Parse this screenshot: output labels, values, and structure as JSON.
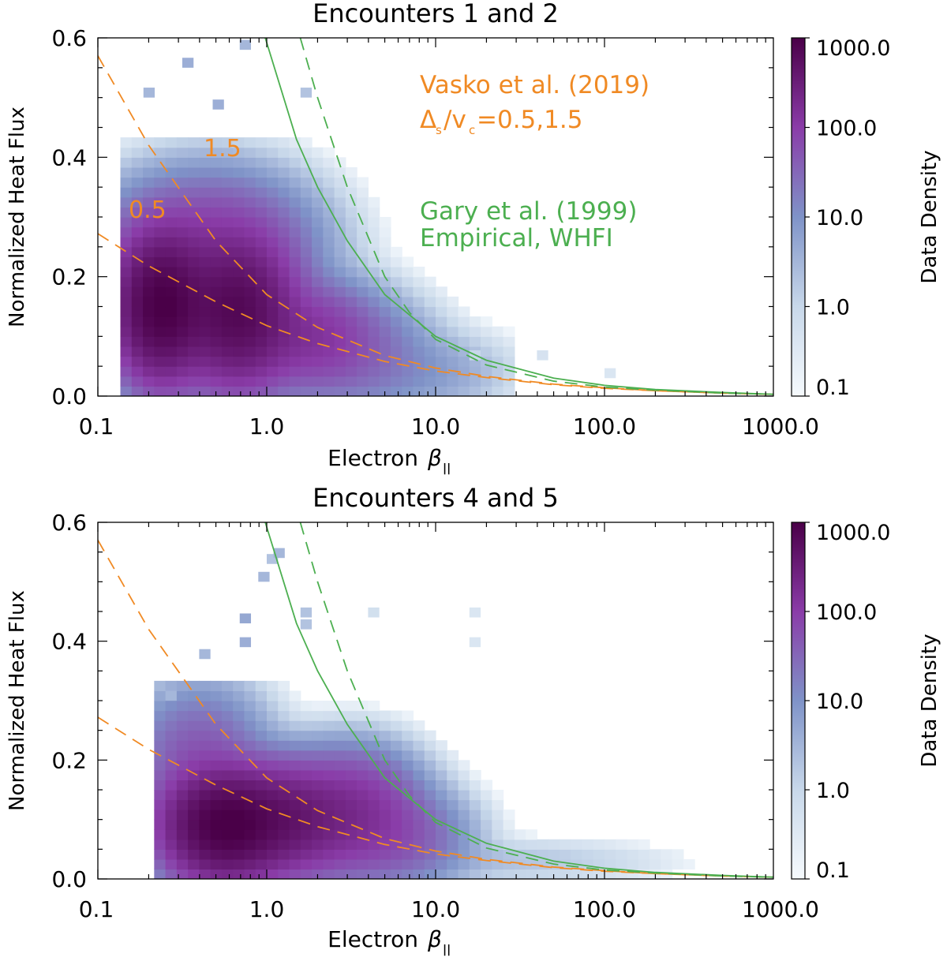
{
  "chart_data": [
    {
      "type": "heatmap",
      "title": "Encounters 1 and 2",
      "xlabel": "Electron",
      "xlabel_symbol": "β",
      "xlabel_sub": "||",
      "ylabel": "Normalized Heat Flux",
      "xscale": "log",
      "xlim": [
        0.1,
        1000
      ],
      "ylim": [
        0,
        0.6
      ],
      "xticks": [
        {
          "v": 0.1,
          "label": "0.1"
        },
        {
          "v": 1,
          "label": "1.0"
        },
        {
          "v": 10,
          "label": "10.0"
        },
        {
          "v": 100,
          "label": "100.0"
        },
        {
          "v": 1000,
          "label": "1000.0"
        }
      ],
      "yticks": [
        {
          "v": 0,
          "label": "0.0"
        },
        {
          "v": 0.2,
          "label": "0.2"
        },
        {
          "v": 0.4,
          "label": "0.4"
        },
        {
          "v": 0.6,
          "label": "0.6"
        }
      ],
      "colorbar": {
        "label": "Data Density",
        "scale": "log",
        "range": [
          0.1,
          1000
        ],
        "ticks": [
          {
            "v": 1000,
            "label": "1000.0"
          },
          {
            "v": 100,
            "label": "100.0"
          },
          {
            "v": 10,
            "label": "10.0"
          },
          {
            "v": 1,
            "label": "1.0"
          },
          {
            "v": 0.1,
            "label": "0.1"
          }
        ],
        "colors": [
          "#f6fafd",
          "#c8d8ea",
          "#7f93c8",
          "#8a3ca8",
          "#4a0048"
        ]
      },
      "density_blobs": [
        {
          "logx": -0.62,
          "y": 0.15,
          "sx": 0.14,
          "sy": 0.06,
          "amp": 3.0
        },
        {
          "logx": -0.18,
          "y": 0.14,
          "sx": 0.17,
          "sy": 0.06,
          "amp": 2.85
        },
        {
          "logx": -0.35,
          "y": 0.25,
          "sx": 0.3,
          "sy": 0.06,
          "amp": 2.0
        },
        {
          "logx": 0.25,
          "y": 0.1,
          "sx": 0.2,
          "sy": 0.045,
          "amp": 2.1
        },
        {
          "logx": 0.55,
          "y": 0.07,
          "sx": 0.22,
          "sy": 0.05,
          "amp": 1.4
        },
        {
          "logx": 0.95,
          "y": 0.04,
          "sx": 0.25,
          "sy": 0.035,
          "amp": 0.8
        }
      ],
      "extent": {
        "logx_min": -0.85,
        "logx_max": 1.5,
        "y_max": 0.44
      },
      "scatter_cells": [
        {
          "logx": -0.5,
          "y": 0.55,
          "c": 4
        },
        {
          "logx": -0.32,
          "y": 0.48,
          "c": 4
        },
        {
          "logx": -0.16,
          "y": 0.58,
          "c": 3
        },
        {
          "logx": -0.73,
          "y": 0.5,
          "c": 3
        },
        {
          "logx": 0.2,
          "y": 0.5,
          "c": 2
        },
        {
          "logx": 1.2,
          "y": 0.06,
          "c": 1
        },
        {
          "logx": 1.6,
          "y": 0.06,
          "c": 0.5
        },
        {
          "logx": 2.0,
          "y": 0.03,
          "c": 0.4
        }
      ],
      "series": [
        {
          "name": "Vasko et al. (2019) Δs/vc=0.5",
          "style": "dashed",
          "color": "#f08a24",
          "x": [
            0.1,
            0.2,
            0.5,
            1,
            2,
            5,
            10,
            20,
            50,
            100,
            200,
            500,
            1000
          ],
          "y": [
            0.272,
            0.218,
            0.158,
            0.118,
            0.088,
            0.058,
            0.042,
            0.031,
            0.019,
            0.013,
            0.009,
            0.005,
            0.003
          ]
        },
        {
          "name": "Vasko et al. (2019) Δs/vc=1.5",
          "style": "dashed",
          "color": "#f08a24",
          "x": [
            0.1,
            0.2,
            0.5,
            1,
            2,
            5,
            10,
            20,
            50,
            100,
            200,
            500,
            1000
          ],
          "y": [
            0.57,
            0.42,
            0.26,
            0.17,
            0.115,
            0.068,
            0.047,
            0.033,
            0.02,
            0.014,
            0.009,
            0.005,
            0.003
          ]
        },
        {
          "name": "Gary et al. (1999) Empirical",
          "style": "solid",
          "color": "#4caf50",
          "x": [
            0.98,
            1.5,
            2,
            3,
            5,
            10,
            20,
            50,
            100,
            200,
            500,
            1000
          ],
          "y": [
            0.6,
            0.43,
            0.35,
            0.26,
            0.17,
            0.1,
            0.06,
            0.03,
            0.018,
            0.011,
            0.006,
            0.003
          ]
        },
        {
          "name": "Gary et al. (1999) WHFI",
          "style": "dashed",
          "color": "#4caf50",
          "x": [
            1.58,
            2,
            3,
            5,
            7,
            10,
            20,
            50,
            100,
            200,
            500,
            1000
          ],
          "y": [
            0.6,
            0.5,
            0.35,
            0.2,
            0.14,
            0.095,
            0.052,
            0.025,
            0.015,
            0.01,
            0.005,
            0.003
          ]
        }
      ],
      "annotations": [
        {
          "text": "Vasko et al. (2019)",
          "color": "#f08a24"
        },
        {
          "text_main": "Δ",
          "text_sub": "s",
          "text_mid": "/v",
          "text_sub2": "c",
          "text_tail": " =0.5,1.5",
          "color": "#f08a24"
        },
        {
          "text": "Gary et al. (1999)",
          "color": "#4caf50"
        },
        {
          "text": "Empirical, WHFI",
          "color": "#4caf50"
        },
        {
          "text": "1.5",
          "color": "#f08a24"
        },
        {
          "text": "0.5",
          "color": "#f08a24"
        }
      ]
    },
    {
      "type": "heatmap",
      "title": "Encounters 4 and 5",
      "xlabel": "Electron",
      "xlabel_symbol": "β",
      "xlabel_sub": "||",
      "ylabel": "Normalized Heat Flux",
      "xscale": "log",
      "xlim": [
        0.1,
        1000
      ],
      "ylim": [
        0,
        0.6
      ],
      "xticks": [
        {
          "v": 0.1,
          "label": "0.1"
        },
        {
          "v": 1,
          "label": "1.0"
        },
        {
          "v": 10,
          "label": "10.0"
        },
        {
          "v": 100,
          "label": "100.0"
        },
        {
          "v": 1000,
          "label": "1000.0"
        }
      ],
      "yticks": [
        {
          "v": 0,
          "label": "0.0"
        },
        {
          "v": 0.2,
          "label": "0.2"
        },
        {
          "v": 0.4,
          "label": "0.4"
        },
        {
          "v": 0.6,
          "label": "0.6"
        }
      ],
      "colorbar": {
        "label": "Data Density",
        "scale": "log",
        "range": [
          0.1,
          1000
        ],
        "ticks": [
          {
            "v": 1000,
            "label": "1000.0"
          },
          {
            "v": 100,
            "label": "100.0"
          },
          {
            "v": 10,
            "label": "10.0"
          },
          {
            "v": 1,
            "label": "1.0"
          },
          {
            "v": 0.1,
            "label": "0.1"
          }
        ],
        "colors": [
          "#f6fafd",
          "#c8d8ea",
          "#7f93c8",
          "#8a3ca8",
          "#4a0048"
        ]
      },
      "density_blobs": [
        {
          "logx": -0.25,
          "y": 0.09,
          "sx": 0.18,
          "sy": 0.045,
          "amp": 3.0
        },
        {
          "logx": 0.1,
          "y": 0.1,
          "sx": 0.2,
          "sy": 0.045,
          "amp": 2.6
        },
        {
          "logx": 0.5,
          "y": 0.11,
          "sx": 0.2,
          "sy": 0.05,
          "amp": 2.2
        },
        {
          "logx": -0.4,
          "y": 0.2,
          "sx": 0.2,
          "sy": 0.06,
          "amp": 1.7
        },
        {
          "logx": 0.8,
          "y": 0.07,
          "sx": 0.2,
          "sy": 0.04,
          "amp": 1.6
        },
        {
          "logx": 1.4,
          "y": 0.03,
          "sx": 0.5,
          "sy": 0.02,
          "amp": 0.3
        }
      ],
      "extent": {
        "logx_min": -0.7,
        "logx_max": 3.0,
        "y_max": 0.34
      },
      "scatter_cells": [
        {
          "logx": -0.16,
          "y": 0.43,
          "c": 5
        },
        {
          "logx": -0.16,
          "y": 0.39,
          "c": 4
        },
        {
          "logx": -0.05,
          "y": 0.5,
          "c": 3
        },
        {
          "logx": 0.0,
          "y": 0.53,
          "c": 2
        },
        {
          "logx": 0.04,
          "y": 0.54,
          "c": 3
        },
        {
          "logx": -0.4,
          "y": 0.37,
          "c": 3
        },
        {
          "logx": -0.6,
          "y": 0.3,
          "c": 3
        },
        {
          "logx": 0.2,
          "y": 0.44,
          "c": 2
        },
        {
          "logx": 0.2,
          "y": 0.42,
          "c": 2
        },
        {
          "logx": 1.2,
          "y": 0.44,
          "c": 0.4
        },
        {
          "logx": 1.2,
          "y": 0.39,
          "c": 0.4
        },
        {
          "logx": 0.6,
          "y": 0.44,
          "c": 0.6
        }
      ],
      "series": [
        {
          "name": "Vasko et al. (2019) Δs/vc=0.5",
          "style": "dashed",
          "color": "#f08a24",
          "x": [
            0.1,
            0.2,
            0.5,
            1,
            2,
            5,
            10,
            20,
            50,
            100,
            200,
            500,
            1000
          ],
          "y": [
            0.272,
            0.218,
            0.158,
            0.118,
            0.088,
            0.058,
            0.042,
            0.031,
            0.019,
            0.013,
            0.009,
            0.005,
            0.003
          ]
        },
        {
          "name": "Vasko et al. (2019) Δs/vc=1.5",
          "style": "dashed",
          "color": "#f08a24",
          "x": [
            0.1,
            0.2,
            0.5,
            1,
            2,
            5,
            10,
            20,
            50,
            100,
            200,
            500,
            1000
          ],
          "y": [
            0.57,
            0.42,
            0.26,
            0.17,
            0.115,
            0.068,
            0.047,
            0.033,
            0.02,
            0.014,
            0.009,
            0.005,
            0.003
          ]
        },
        {
          "name": "Gary et al. (1999) Empirical",
          "style": "solid",
          "color": "#4caf50",
          "x": [
            0.98,
            1.5,
            2,
            3,
            5,
            10,
            20,
            50,
            100,
            200,
            500,
            1000
          ],
          "y": [
            0.6,
            0.43,
            0.35,
            0.26,
            0.17,
            0.1,
            0.06,
            0.03,
            0.018,
            0.011,
            0.006,
            0.003
          ]
        },
        {
          "name": "Gary et al. (1999) WHFI",
          "style": "dashed",
          "color": "#4caf50",
          "x": [
            1.58,
            2,
            3,
            5,
            7,
            10,
            20,
            50,
            100,
            200,
            500,
            1000
          ],
          "y": [
            0.6,
            0.5,
            0.35,
            0.2,
            0.14,
            0.095,
            0.052,
            0.025,
            0.015,
            0.01,
            0.005,
            0.003
          ]
        }
      ],
      "annotations": []
    }
  ]
}
